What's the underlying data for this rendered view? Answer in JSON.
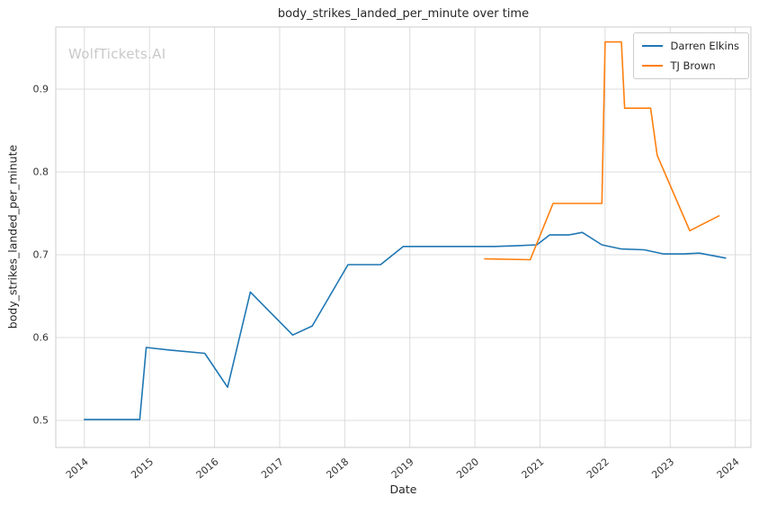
{
  "watermark": "WolfTickets.AI",
  "chart_data": {
    "type": "line",
    "title": "body_strikes_landed_per_minute over time",
    "xlabel": "Date",
    "ylabel": "body_strikes_landed_per_minute",
    "xlim": [
      2013.56,
      2024.24
    ],
    "ylim": [
      0.4674,
      0.975
    ],
    "xticks": [
      2014,
      2015,
      2016,
      2017,
      2018,
      2019,
      2020,
      2021,
      2022,
      2023,
      2024
    ],
    "yticks": [
      0.5,
      0.6,
      0.7,
      0.8,
      0.9
    ],
    "grid": true,
    "legend_position": "upper right",
    "colors": {
      "grid": "#dcdcdc",
      "border": "#cccccc",
      "tick": "#333333",
      "title": "#262626",
      "watermark": "#c9c9c9"
    },
    "series": [
      {
        "name": "Darren Elkins",
        "color": "#1f77b4",
        "x": [
          2014.0,
          2014.85,
          2014.95,
          2015.3,
          2015.85,
          2016.2,
          2016.55,
          2017.2,
          2017.5,
          2018.05,
          2018.55,
          2018.9,
          2019.4,
          2020.3,
          2020.65,
          2020.95,
          2021.15,
          2021.45,
          2021.65,
          2021.95,
          2022.25,
          2022.6,
          2022.9,
          2023.2,
          2023.45,
          2023.85
        ],
        "y": [
          0.501,
          0.501,
          0.588,
          0.585,
          0.581,
          0.54,
          0.655,
          0.603,
          0.614,
          0.688,
          0.688,
          0.71,
          0.71,
          0.71,
          0.711,
          0.712,
          0.724,
          0.724,
          0.727,
          0.712,
          0.707,
          0.706,
          0.701,
          0.701,
          0.702,
          0.696
        ]
      },
      {
        "name": "TJ Brown",
        "color": "#ff7f0e",
        "x": [
          2020.15,
          2020.85,
          2021.2,
          2021.95,
          2022.0,
          2022.25,
          2022.3,
          2022.7,
          2022.8,
          2023.3,
          2023.75
        ],
        "y": [
          0.695,
          0.694,
          0.762,
          0.762,
          0.957,
          0.957,
          0.877,
          0.877,
          0.82,
          0.729,
          0.747
        ]
      }
    ]
  }
}
